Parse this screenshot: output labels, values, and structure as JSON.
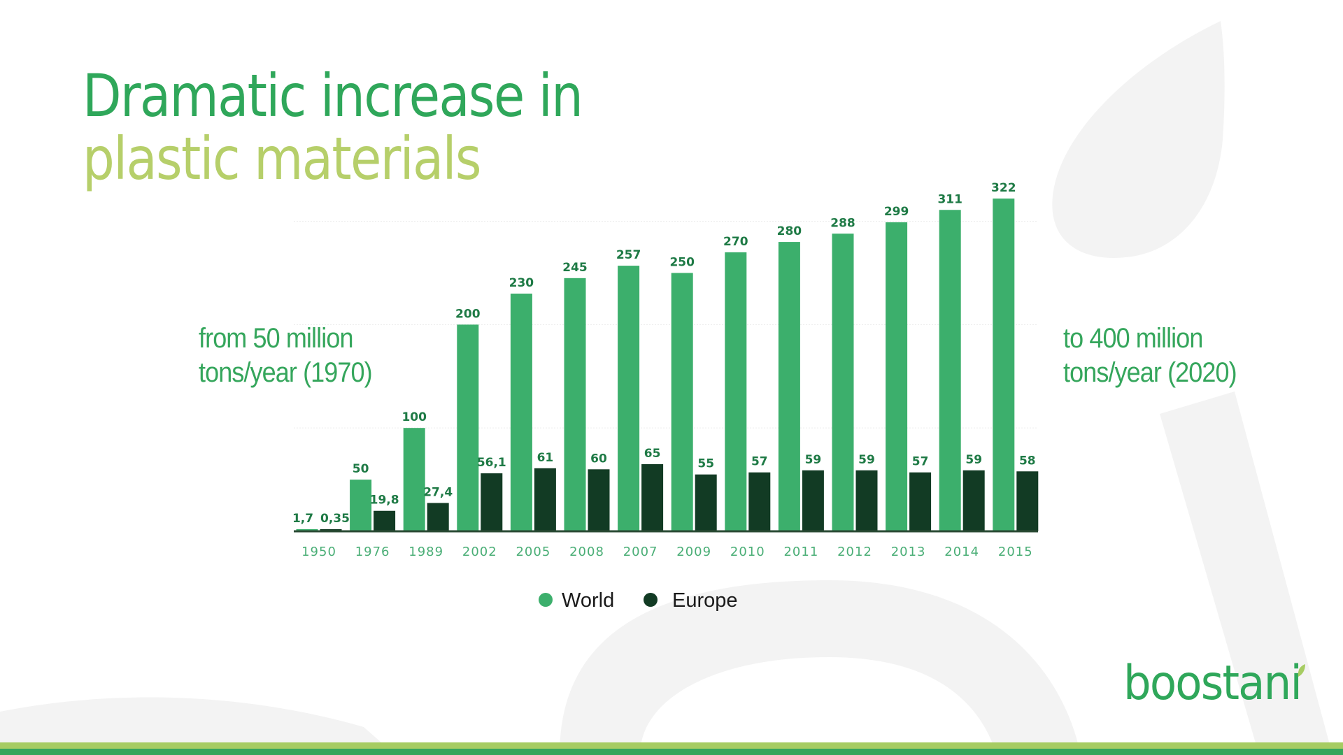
{
  "title": {
    "line1": "Dramatic increase in",
    "line2": "plastic materials"
  },
  "notes": {
    "left": [
      "from 50 million",
      "tons/year (1970)"
    ],
    "right": [
      "to 400 million",
      "tons/year (2020)"
    ]
  },
  "logo": {
    "text": "boostani",
    "icon": "leaf-icon"
  },
  "colors": {
    "world": "#3caf6c",
    "europe": "#123b24",
    "title_primary": "#2fa75a",
    "title_secondary": "#b6cf6a",
    "stripe_light": "#a6cc62",
    "stripe_dark": "#35a55b"
  },
  "chart_data": {
    "type": "bar",
    "categories": [
      "1950",
      "1976",
      "1989",
      "2002",
      "2005",
      "2008",
      "2007",
      "2009",
      "2010",
      "2011",
      "2012",
      "2013",
      "2014",
      "2015"
    ],
    "series": [
      {
        "name": "World",
        "values": [
          1.7,
          50,
          100,
          200,
          230,
          245,
          257,
          250,
          270,
          280,
          288,
          299,
          311,
          322
        ],
        "labels": [
          "1,7",
          "50",
          "100",
          "200",
          "230",
          "245",
          "257",
          "250",
          "270",
          "280",
          "288",
          "299",
          "311",
          "322"
        ]
      },
      {
        "name": "Europe",
        "values": [
          0.35,
          19.8,
          27.4,
          56.1,
          61,
          60,
          65,
          55,
          57,
          59,
          59,
          57,
          59,
          58
        ],
        "labels": [
          "0,35",
          "19,8",
          "27,4",
          "56,1",
          "61",
          "60",
          "65",
          "55",
          "57",
          "59",
          "59",
          "57",
          "59",
          "58"
        ]
      }
    ],
    "ylim": [
      0,
      322
    ],
    "grid": true,
    "legend": "bottom",
    "title": "",
    "xlabel": "",
    "ylabel": ""
  }
}
